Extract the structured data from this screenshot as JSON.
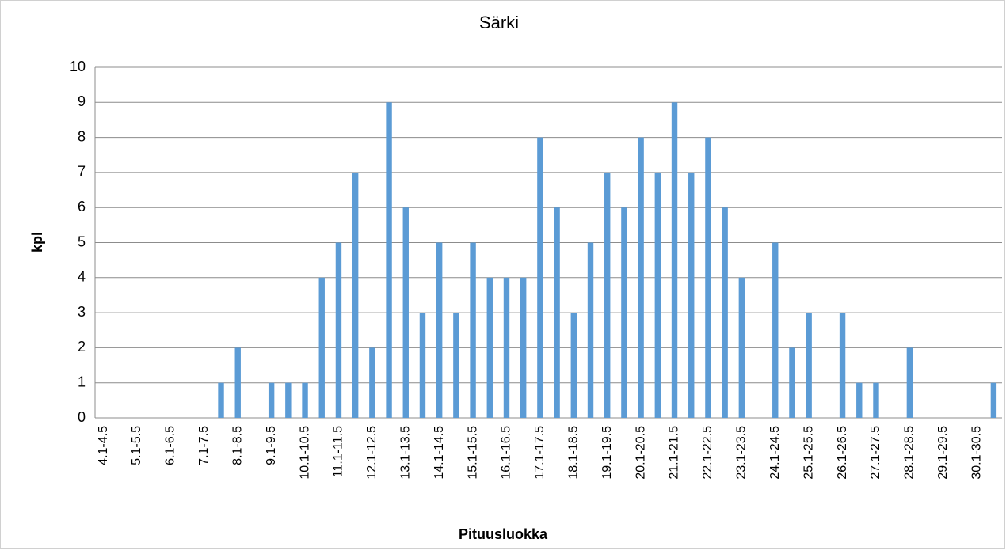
{
  "chart_data": {
    "type": "bar",
    "title": "Särki",
    "x_label": "Pituusluokka",
    "y_label": "kpl",
    "categories": [
      "4.1-4.5",
      null,
      "5.1-5.5",
      null,
      "6.1-6.5",
      null,
      "7.1-7.5",
      null,
      "8.1-8.5",
      null,
      "9.1-9.5",
      null,
      "10.1-10.5",
      null,
      "11.1-11.5",
      null,
      "12.1-12.5",
      null,
      "13.1-13.5",
      null,
      "14.1-14.5",
      null,
      "15.1-15.5",
      null,
      "16.1-16.5",
      null,
      "17.1-17.5",
      null,
      "18.1-18.5",
      null,
      "19.1-19.5",
      null,
      "20.1-20.5",
      null,
      "21.1-21.5",
      null,
      "22.1-22.5",
      null,
      "23.1-23.5",
      null,
      "24.1-24.5",
      null,
      "25.1-25.5",
      null,
      "26.1-26.5",
      null,
      "27.1-27.5",
      null,
      "28.1-28.5",
      null,
      "29.1-29.5",
      null,
      "30.1-30.5",
      null
    ],
    "values": [
      0,
      0,
      0,
      0,
      0,
      0,
      0,
      1,
      2,
      0,
      1,
      1,
      1,
      4,
      5,
      7,
      2,
      9,
      6,
      3,
      5,
      3,
      5,
      4,
      4,
      4,
      8,
      6,
      3,
      5,
      7,
      6,
      8,
      7,
      9,
      7,
      8,
      6,
      4,
      0,
      5,
      2,
      3,
      0,
      3,
      1,
      1,
      0,
      2,
      0,
      0,
      0,
      0,
      1
    ],
    "color": "#5b9bd5",
    "ylim": [
      0,
      10
    ],
    "yticks": [
      0,
      1,
      2,
      3,
      4,
      5,
      6,
      7,
      8,
      9,
      10
    ],
    "grid": true
  }
}
